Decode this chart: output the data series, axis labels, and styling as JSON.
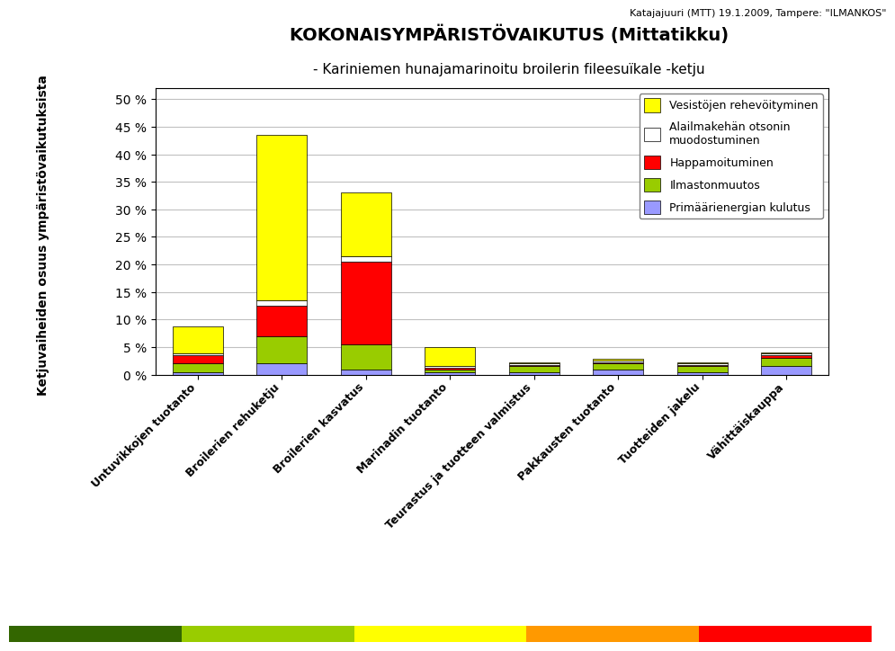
{
  "categories": [
    "Untuvikkojen tuotanto",
    "Broilerien rehuketju",
    "Broilerien kasvatus",
    "Marinadin tuotanto",
    "Teurastus ja tuotteen valmistus",
    "Pakkausten tuotanto",
    "Tuotteiden jakelu",
    "Vähittäiskauppa"
  ],
  "series": {
    "Primäärienergian kulutus": [
      0.5,
      2.0,
      1.0,
      0.5,
      0.5,
      1.0,
      0.5,
      1.5
    ],
    "Ilmastonmuutos": [
      1.5,
      5.0,
      4.5,
      0.5,
      1.0,
      1.0,
      1.0,
      1.5
    ],
    "Happamoituminen": [
      1.5,
      5.5,
      15.0,
      0.3,
      0.3,
      0.3,
      0.3,
      0.5
    ],
    "Alailmakehän otsonin muodostuminen": [
      0.3,
      1.0,
      1.0,
      0.2,
      0.2,
      0.2,
      0.2,
      0.3
    ],
    "Vesistöjen rehevöityminen": [
      5.0,
      30.0,
      11.5,
      3.5,
      0.3,
      0.3,
      0.2,
      0.3
    ]
  },
  "colors": {
    "Primäärienergian kulutus": "#9999FF",
    "Ilmastonmuutos": "#99CC00",
    "Happamoituminen": "#FF0000",
    "Alailmakehän otsonin muodostuminen": "#FFFFFF",
    "Vesistöjen rehevöityminen": "#FFFF00"
  },
  "legend_labels": {
    "Vesistöjen rehevöityminen": "Vesistöjen rehevöityminen",
    "Alailmakehän otsonin muodostuminen": "Alailmakehän otsonin\nmuodostuminen",
    "Happamoituminen": "Happamoituminen",
    "Ilmastonmuutos": "Ilmastonmuutos",
    "Primäärienergian kulutus": "Primäärienergian kulutus"
  },
  "title1": "KOKONAISYMPÄRISTÖVAIKUTUS (Mittatikku)",
  "title2": "- Kariniemen hunajamarinoitu broilerin fileesuïkale -ketju",
  "header": "Katajajuuri (MTT) 19.1.2009, Tampere: \"ILMANKOS\"",
  "ylabel": "Ketjuvaiheiden osuus ympäristövaikutuksista",
  "ylim": [
    0,
    52
  ],
  "yticks": [
    0,
    5,
    10,
    15,
    20,
    25,
    30,
    35,
    40,
    45,
    50
  ],
  "background_color": "#FFFFFF",
  "grid_color": "#C0C0C0",
  "bottom_bar_colors": [
    "#336600",
    "#99CC00",
    "#FFFF00",
    "#FF9900",
    "#FF0000"
  ]
}
